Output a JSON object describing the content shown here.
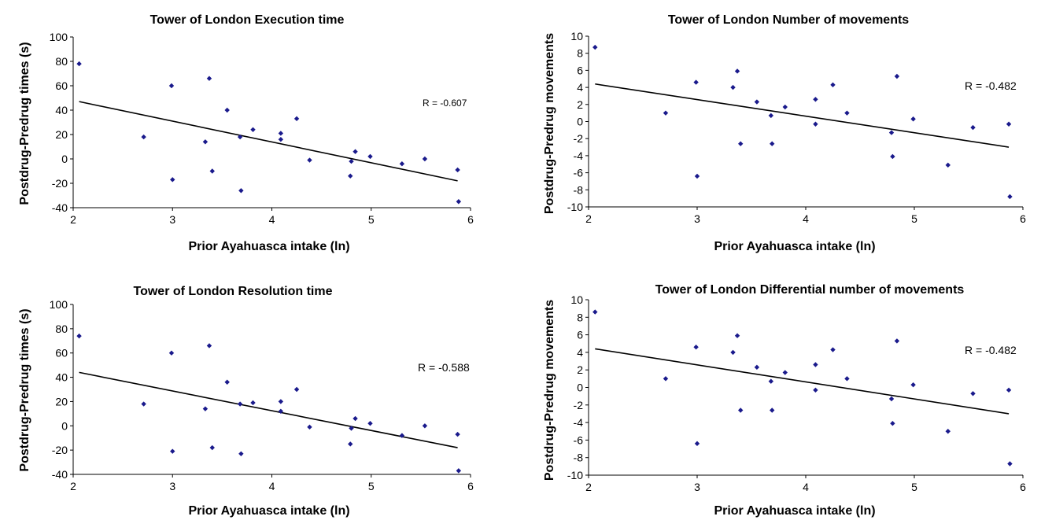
{
  "chart_data": [
    {
      "type": "scatter",
      "title": "Tower of London Execution time",
      "xlabel": "Prior Ayahuasca intake (ln)",
      "ylabel": "Postdrug-Predrug times (s)",
      "xlim": [
        2,
        6
      ],
      "ylim": [
        -40,
        100
      ],
      "xticks": [
        "2",
        "3",
        "4",
        "5",
        "6"
      ],
      "yticks": [
        "-40",
        "-20",
        "0",
        "20",
        "40",
        "60",
        "80",
        "100"
      ],
      "annotation": "R = -0.607",
      "trendline": [
        [
          2.06,
          47
        ],
        [
          5.87,
          -18
        ]
      ],
      "points": [
        [
          2.06,
          78
        ],
        [
          2.71,
          18
        ],
        [
          2.99,
          60
        ],
        [
          3.0,
          -17
        ],
        [
          3.33,
          14
        ],
        [
          3.37,
          66
        ],
        [
          3.4,
          -10
        ],
        [
          3.55,
          40
        ],
        [
          3.68,
          18
        ],
        [
          3.69,
          -26
        ],
        [
          3.81,
          24
        ],
        [
          4.09,
          21
        ],
        [
          4.09,
          16
        ],
        [
          4.25,
          33
        ],
        [
          4.38,
          -1
        ],
        [
          4.79,
          -14
        ],
        [
          4.8,
          -2
        ],
        [
          4.84,
          6
        ],
        [
          4.99,
          2
        ],
        [
          5.31,
          -4
        ],
        [
          5.54,
          0
        ],
        [
          5.87,
          -9
        ],
        [
          5.88,
          -35
        ]
      ]
    },
    {
      "type": "scatter",
      "title": "Tower of London Number of movements",
      "xlabel": "Prior Ayahuasca intake (ln)",
      "ylabel": "Postdrug-Predrug movements",
      "xlim": [
        2,
        6
      ],
      "ylim": [
        -10,
        10
      ],
      "xticks": [
        "2",
        "3",
        "4",
        "5",
        "6"
      ],
      "yticks": [
        "-10",
        "-8",
        "-6",
        "-4",
        "-2",
        "0",
        "2",
        "4",
        "6",
        "8",
        "10"
      ],
      "annotation": "R = -0.482",
      "trendline": [
        [
          2.06,
          4.4
        ],
        [
          5.87,
          -3.0
        ]
      ],
      "points": [
        [
          2.06,
          8.7
        ],
        [
          2.71,
          1.0
        ],
        [
          2.99,
          4.6
        ],
        [
          3.0,
          -6.4
        ],
        [
          3.33,
          4.0
        ],
        [
          3.37,
          5.9
        ],
        [
          3.4,
          -2.6
        ],
        [
          3.55,
          2.3
        ],
        [
          3.68,
          0.7
        ],
        [
          3.69,
          -2.6
        ],
        [
          3.81,
          1.7
        ],
        [
          4.09,
          2.6
        ],
        [
          4.09,
          -0.3
        ],
        [
          4.25,
          4.3
        ],
        [
          4.38,
          1.0
        ],
        [
          4.79,
          -1.3
        ],
        [
          4.8,
          -4.1
        ],
        [
          4.84,
          5.3
        ],
        [
          4.99,
          0.3
        ],
        [
          5.31,
          -5.1
        ],
        [
          5.54,
          -0.7
        ],
        [
          5.87,
          -0.3
        ],
        [
          5.88,
          -8.8
        ]
      ]
    },
    {
      "type": "scatter",
      "title": "Tower of London Resolution time",
      "xlabel": "Prior Ayahuasca intake (ln)",
      "ylabel": "Postdrug-Predrug times (s)",
      "xlim": [
        2,
        6
      ],
      "ylim": [
        -40,
        100
      ],
      "xticks": [
        "2",
        "3",
        "4",
        "5",
        "6"
      ],
      "yticks": [
        "-40",
        "-20",
        "0",
        "20",
        "40",
        "60",
        "80",
        "100"
      ],
      "annotation": "R = -0.588",
      "trendline": [
        [
          2.06,
          44
        ],
        [
          5.87,
          -18
        ]
      ],
      "points": [
        [
          2.06,
          74
        ],
        [
          2.71,
          18
        ],
        [
          2.99,
          60
        ],
        [
          3.0,
          -21
        ],
        [
          3.33,
          14
        ],
        [
          3.37,
          66
        ],
        [
          3.4,
          -18
        ],
        [
          3.55,
          36
        ],
        [
          3.68,
          18
        ],
        [
          3.69,
          -23
        ],
        [
          3.81,
          19
        ],
        [
          4.09,
          20
        ],
        [
          4.09,
          12
        ],
        [
          4.25,
          30
        ],
        [
          4.38,
          -1
        ],
        [
          4.79,
          -15
        ],
        [
          4.8,
          -2
        ],
        [
          4.84,
          6
        ],
        [
          4.99,
          2
        ],
        [
          5.31,
          -8
        ],
        [
          5.54,
          0
        ],
        [
          5.87,
          -7
        ],
        [
          5.88,
          -37
        ]
      ]
    },
    {
      "type": "scatter",
      "title": "Tower of London Differential number of movements",
      "xlabel": "Prior Ayahuasca intake (ln)",
      "ylabel": "Postdrug-Predrug movements",
      "xlim": [
        2,
        6
      ],
      "ylim": [
        -10,
        10
      ],
      "xticks": [
        "2",
        "3",
        "4",
        "5",
        "6"
      ],
      "yticks": [
        "-10",
        "-8",
        "-6",
        "-4",
        "-2",
        "0",
        "2",
        "4",
        "6",
        "8",
        "10"
      ],
      "annotation": "R = -0.482",
      "trendline": [
        [
          2.06,
          4.4
        ],
        [
          5.87,
          -3.0
        ]
      ],
      "points": [
        [
          2.06,
          8.6
        ],
        [
          2.71,
          1.0
        ],
        [
          2.99,
          4.6
        ],
        [
          3.0,
          -6.4
        ],
        [
          3.33,
          4.0
        ],
        [
          3.37,
          5.9
        ],
        [
          3.4,
          -2.6
        ],
        [
          3.55,
          2.3
        ],
        [
          3.68,
          0.7
        ],
        [
          3.69,
          -2.6
        ],
        [
          3.81,
          1.7
        ],
        [
          4.09,
          2.6
        ],
        [
          4.09,
          -0.3
        ],
        [
          4.25,
          4.3
        ],
        [
          4.38,
          1.0
        ],
        [
          4.79,
          -1.3
        ],
        [
          4.8,
          -4.1
        ],
        [
          4.84,
          5.3
        ],
        [
          4.99,
          0.3
        ],
        [
          5.31,
          -5.0
        ],
        [
          5.54,
          -0.7
        ],
        [
          5.87,
          -0.3
        ],
        [
          5.88,
          -8.7
        ]
      ]
    }
  ]
}
